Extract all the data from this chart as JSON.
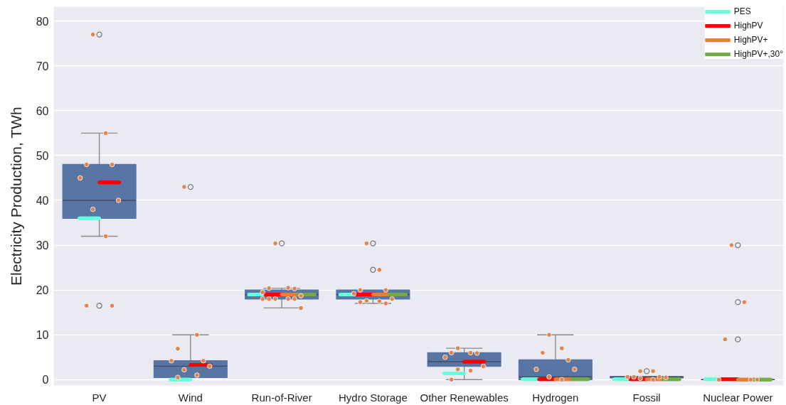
{
  "chart_data": {
    "type": "box",
    "ylabel": "Electricity Production, TWh",
    "categories": [
      "PV",
      "Wind",
      "Run-of-River",
      "Hydro Storage",
      "Other Renewables",
      "Hydrogen",
      "Fossil",
      "Nuclear Power"
    ],
    "ylim": [
      -1.3,
      83.2
    ],
    "yticks": [
      0,
      10,
      20,
      30,
      40,
      50,
      60,
      70,
      80
    ],
    "grid": "y",
    "legend": "top right",
    "series": [
      {
        "color": "#5875a4",
        "boxes": [
          {
            "low": 32,
            "q1": 36,
            "median": 40,
            "q3": 48,
            "high": 55,
            "outliers": [
              77,
              16.5
            ]
          },
          {
            "low": 0.5,
            "q1": 0.5,
            "median": 3,
            "q3": 4.2,
            "high": 10,
            "outliers": [
              43
            ]
          },
          {
            "low": 16,
            "q1": 18,
            "median": 19,
            "q3": 20,
            "high": 20.4,
            "outliers": [
              30.4
            ]
          },
          {
            "low": 17,
            "q1": 18,
            "median": 19,
            "q3": 20,
            "high": 20,
            "outliers": [
              30.4,
              24.5
            ]
          },
          {
            "low": 0,
            "q1": 3,
            "median": 4,
            "q3": 6,
            "high": 7
          },
          {
            "low": 0,
            "q1": 0,
            "median": 0.6,
            "q3": 4.4,
            "high": 10
          },
          {
            "low": 0.4,
            "q1": 0.4,
            "median": 0.6,
            "q3": 0.7,
            "high": 0.7,
            "outliers": [
              1.9
            ]
          },
          {
            "low": 0,
            "q1": 0,
            "median": 0,
            "q3": 0,
            "high": 0,
            "outliers": [
              30,
              17.3,
              9
            ]
          }
        ]
      },
      {
        "name": "PES",
        "color": "#66ffdd",
        "boxes": [
          {
            "low": 36,
            "q1": 36,
            "median": 36,
            "q3": 36,
            "high": 36
          },
          {
            "low": 0,
            "q1": 0,
            "median": 0,
            "q3": 0,
            "high": 0
          },
          {
            "low": 19,
            "q1": 19,
            "median": 19,
            "q3": 19,
            "high": 19
          },
          {
            "low": 19,
            "q1": 19,
            "median": 19,
            "q3": 19,
            "high": 19
          },
          {
            "low": 1.4,
            "q1": 1.4,
            "median": 1.4,
            "q3": 1.4,
            "high": 1.4
          },
          {
            "low": 0.1,
            "q1": 0.1,
            "median": 0.1,
            "q3": 0.1,
            "high": 0.1
          },
          {
            "low": 0.1,
            "q1": 0.1,
            "median": 0.1,
            "q3": 0.1,
            "high": 0.1
          },
          {
            "low": 0.1,
            "q1": 0.1,
            "median": 0.1,
            "q3": 0.1,
            "high": 0.1
          }
        ]
      },
      {
        "name": "HighPV",
        "color": "#ff0000",
        "boxes": [
          {
            "low": 44,
            "q1": 44,
            "median": 44,
            "q3": 44,
            "high": 44
          },
          {
            "low": 3.3,
            "q1": 3.3,
            "median": 3.3,
            "q3": 3.3,
            "high": 3.3
          },
          {
            "low": 19,
            "q1": 19,
            "median": 19,
            "q3": 19,
            "high": 19
          },
          {
            "low": 19,
            "q1": 19,
            "median": 19,
            "q3": 19,
            "high": 19
          },
          {
            "low": 4,
            "q1": 4,
            "median": 4,
            "q3": 4,
            "high": 4
          },
          {
            "low": 0.1,
            "q1": 0.1,
            "median": 0.1,
            "q3": 0.1,
            "high": 0.1
          },
          {
            "low": 0.1,
            "q1": 0.1,
            "median": 0.1,
            "q3": 0.1,
            "high": 0.1
          },
          {
            "low": 0.1,
            "q1": 0.1,
            "median": 0.1,
            "q3": 0.1,
            "high": 0.1
          }
        ]
      },
      {
        "name": "HighPV+",
        "color": "#ed7d31",
        "boxes": [
          null,
          null,
          {
            "low": 19,
            "q1": 19,
            "median": 19,
            "q3": 19,
            "high": 19
          },
          {
            "low": 19,
            "q1": 19,
            "median": 19,
            "q3": 19,
            "high": 19
          },
          null,
          {
            "low": 0.1,
            "q1": 0.1,
            "median": 0.1,
            "q3": 0.1,
            "high": 0.1
          },
          {
            "low": 0.1,
            "q1": 0.1,
            "median": 0.1,
            "q3": 0.1,
            "high": 0.1
          },
          {
            "low": 0,
            "q1": 0,
            "median": 0,
            "q3": 0,
            "high": 0
          }
        ]
      },
      {
        "name": "HighPV+,30°",
        "color": "#70ad47",
        "boxes": [
          null,
          null,
          {
            "low": 19,
            "q1": 19,
            "median": 19,
            "q3": 19,
            "high": 19
          },
          {
            "low": 19,
            "q1": 19,
            "median": 19,
            "q3": 19,
            "high": 19
          },
          null,
          {
            "low": 0.1,
            "q1": 0.1,
            "median": 0.1,
            "q3": 0.1,
            "high": 0.1
          },
          {
            "low": 0.1,
            "q1": 0.1,
            "median": 0.1,
            "q3": 0.1,
            "high": 0.1
          },
          {
            "low": 0,
            "q1": 0,
            "median": 0,
            "q3": 0,
            "high": 0
          }
        ]
      },
      {
        "type": "scatter",
        "marker": "circle",
        "color": "#dd8452",
        "x": [
          "PV",
          "PV",
          "PV",
          "PV",
          "PV",
          "PV",
          "PV",
          "PV",
          "PV",
          "PV",
          "Wind",
          "Wind",
          "Wind",
          "Wind",
          "Wind",
          "Wind",
          "Wind",
          "Wind",
          "Wind",
          "Run-of-River",
          "Run-of-River",
          "Run-of-River",
          "Run-of-River",
          "Run-of-River",
          "Run-of-River",
          "Run-of-River",
          "Run-of-River",
          "Run-of-River",
          "Run-of-River",
          "Run-of-River",
          "Run-of-River",
          "Hydro Storage",
          "Hydro Storage",
          "Hydro Storage",
          "Hydro Storage",
          "Hydro Storage",
          "Hydro Storage",
          "Hydro Storage",
          "Hydro Storage",
          "Hydro Storage",
          "Hydro Storage",
          "Other Renewables",
          "Other Renewables",
          "Other Renewables",
          "Other Renewables",
          "Other Renewables",
          "Other Renewables",
          "Other Renewables",
          "Other Renewables",
          "Other Renewables",
          "Hydrogen",
          "Hydrogen",
          "Hydrogen",
          "Hydrogen",
          "Hydrogen",
          "Hydrogen",
          "Hydrogen",
          "Hydrogen",
          "Fossil",
          "Fossil",
          "Fossil",
          "Fossil",
          "Fossil",
          "Fossil",
          "Fossil",
          "Fossil",
          "Nuclear Power",
          "Nuclear Power",
          "Nuclear Power",
          "Nuclear Power",
          "Nuclear Power",
          "Nuclear Power"
        ],
        "values": [
          77,
          55,
          48,
          48,
          45,
          40,
          38,
          32,
          16.5,
          16.5,
          43,
          10,
          6.9,
          4.2,
          4.2,
          3,
          2.2,
          1,
          0.5,
          30.4,
          20.5,
          20.4,
          20.3,
          19.5,
          18.7,
          18,
          18,
          18,
          18,
          18,
          16,
          30.4,
          24.5,
          20,
          20,
          19.2,
          18,
          17.6,
          17.5,
          17.3,
          17,
          7,
          6,
          6,
          5.9,
          5,
          3,
          2.3,
          2,
          0,
          10,
          7,
          6,
          4.4,
          2.3,
          2.3,
          0.6,
          0,
          1.9,
          1.9,
          0.6,
          0.6,
          0.6,
          0.5,
          0.3,
          0,
          30,
          17.3,
          9,
          0,
          0,
          0
        ]
      }
    ]
  }
}
